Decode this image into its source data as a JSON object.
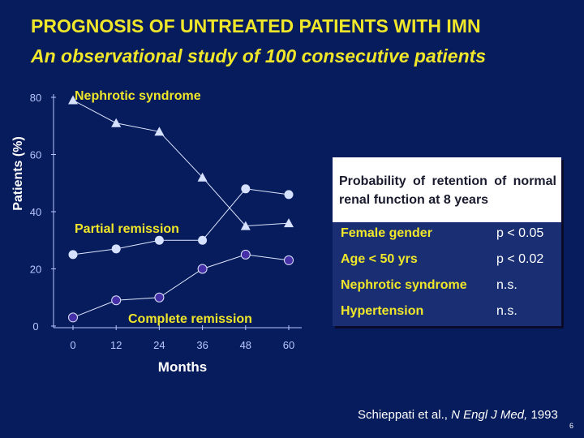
{
  "slide": {
    "title": "PROGNOSIS OF UNTREATED PATIENTS WITH IMN",
    "subtitle": "An observational study of 100 consecutive patients",
    "citation_authors": "Schieppati et al., ",
    "citation_journal": "N Engl J Med,",
    "citation_year": " 1993",
    "page_number": "6"
  },
  "colors": {
    "background": "#061c5c",
    "title_yellow": "#f0e62a",
    "axis_text": "#b8c6ff",
    "nephrotic_marker": "#d6e0ff",
    "partial_marker": "#d6e0ff",
    "complete_marker": "#4630a8"
  },
  "chart_data": {
    "type": "line",
    "x": [
      0,
      12,
      24,
      36,
      48,
      60
    ],
    "xlabel": "Months",
    "ylabel": "Patients (%)",
    "xlim": [
      0,
      60
    ],
    "ylim": [
      0,
      80
    ],
    "yticks": [
      0,
      20,
      40,
      60,
      80
    ],
    "grid": false,
    "series": [
      {
        "name": "Nephrotic syndrome",
        "marker": "triangle",
        "values": [
          79,
          71,
          68,
          52,
          35,
          36
        ]
      },
      {
        "name": "Partial remission",
        "marker": "circle",
        "values": [
          25,
          27,
          30,
          30,
          48,
          46
        ]
      },
      {
        "name": "Complete remission",
        "marker": "circle",
        "values": [
          3,
          9,
          10,
          20,
          25,
          23
        ]
      }
    ]
  },
  "table": {
    "header": "Probability of retention of normal renal function at 8 years",
    "rows": [
      {
        "factor": "Female gender",
        "p": "p < 0.05"
      },
      {
        "factor": "Age < 50 yrs",
        "p": "p < 0.02"
      },
      {
        "factor": "Nephrotic syndrome",
        "p": "n.s."
      },
      {
        "factor": "Hypertension",
        "p": "n.s."
      }
    ]
  }
}
